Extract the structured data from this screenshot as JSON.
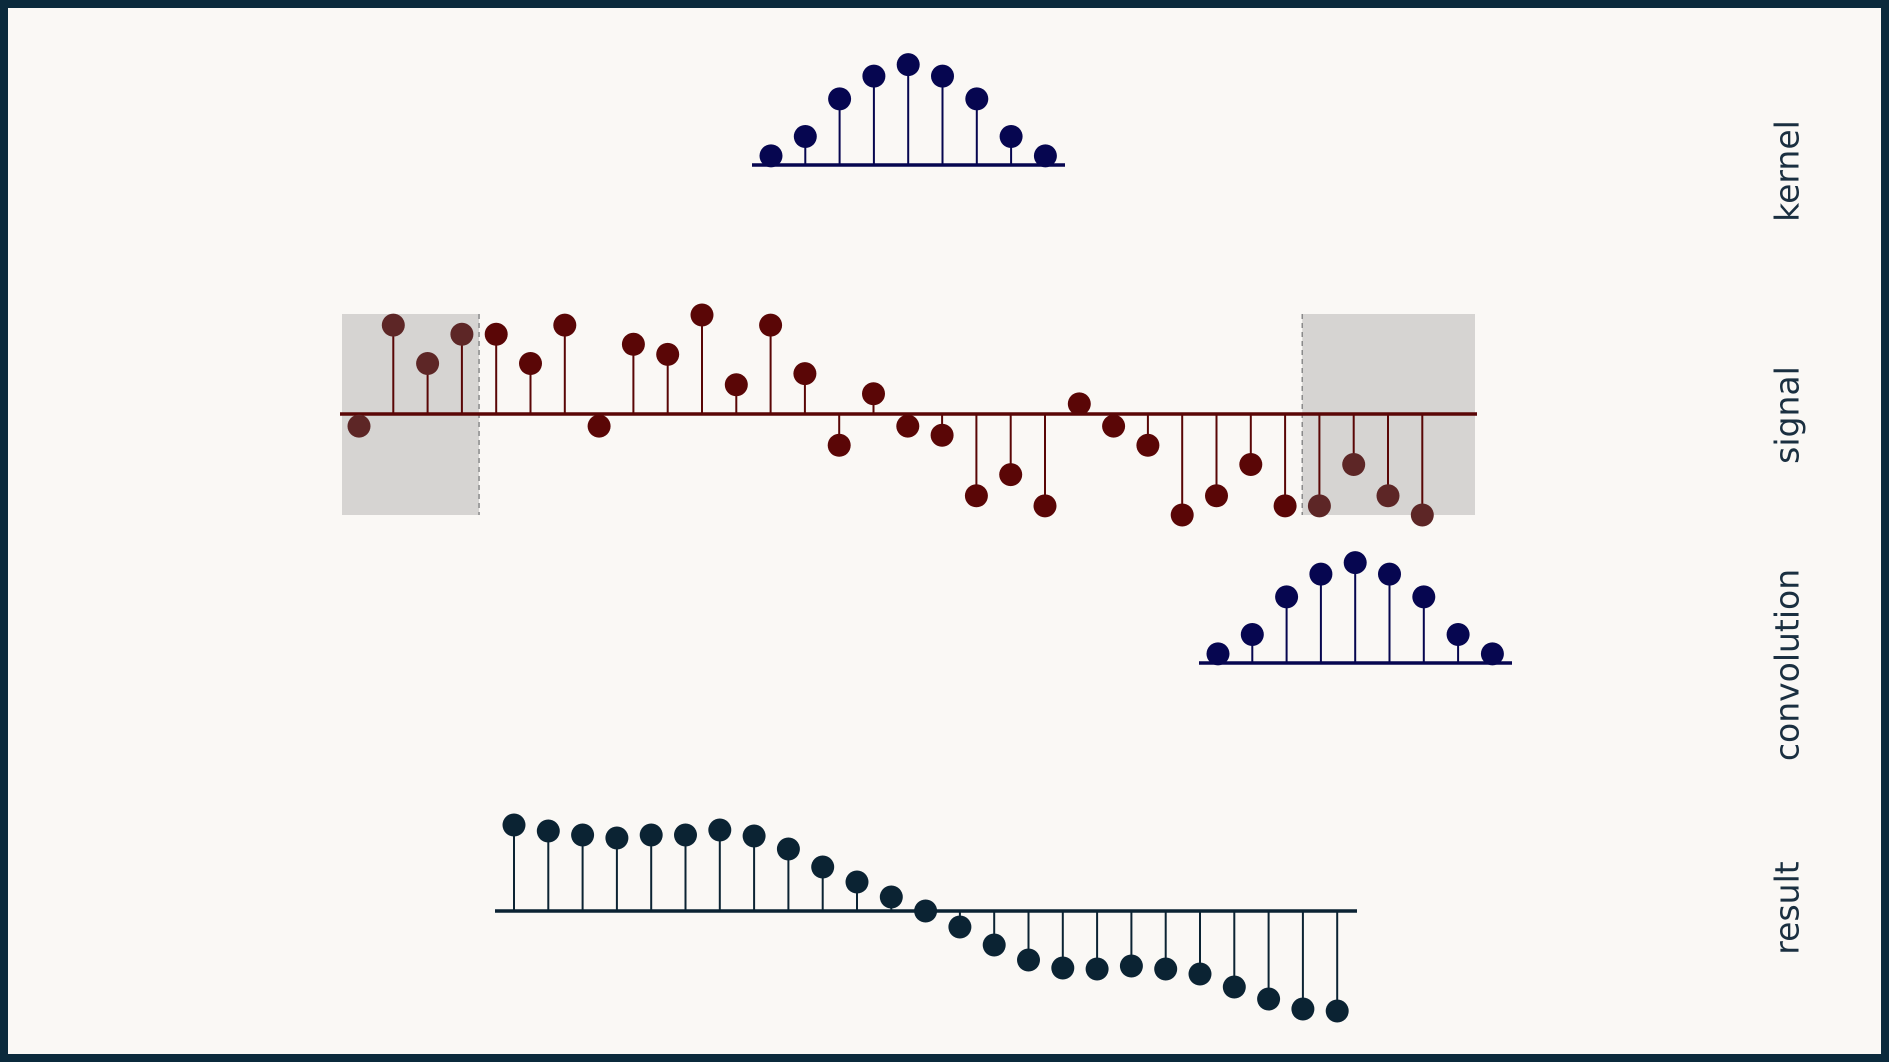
{
  "labels": {
    "kernel": "kernel",
    "signal": "signal",
    "convolution": "convolution",
    "result": "result"
  },
  "colors": {
    "frame": "#0b2a3c",
    "background": "#faf8f5",
    "kernel": "#060650",
    "signal": "#5a0606",
    "result": "#0b2333",
    "padding": "#d6d4d2",
    "padding_marker": "#5d2626",
    "dashed": "#8a8a8a"
  },
  "kernel": [
    0.08,
    0.25,
    0.58,
    0.78,
    0.88,
    0.78,
    0.58,
    0.25,
    0.08
  ],
  "signal": {
    "padding_left": 4,
    "padding_right": 4,
    "values": [
      -0.12,
      0.88,
      0.5,
      0.79,
      0.79,
      0.5,
      0.88,
      -0.12,
      0.69,
      0.59,
      0.98,
      0.29,
      0.88,
      0.4,
      -0.31,
      0.2,
      -0.12,
      -0.21,
      -0.81,
      -0.6,
      -0.91,
      0.1,
      -0.12,
      -0.31,
      -1.0,
      -0.81,
      -0.5,
      -0.91,
      -0.91,
      -0.5,
      -0.81,
      -1.0
    ]
  },
  "result": [
    0.86,
    0.8,
    0.76,
    0.73,
    0.76,
    0.76,
    0.81,
    0.75,
    0.62,
    0.44,
    0.29,
    0.14,
    0.0,
    -0.16,
    -0.34,
    -0.49,
    -0.57,
    -0.58,
    -0.55,
    -0.58,
    -0.63,
    -0.76,
    -0.88,
    -0.98,
    -1.0
  ]
}
